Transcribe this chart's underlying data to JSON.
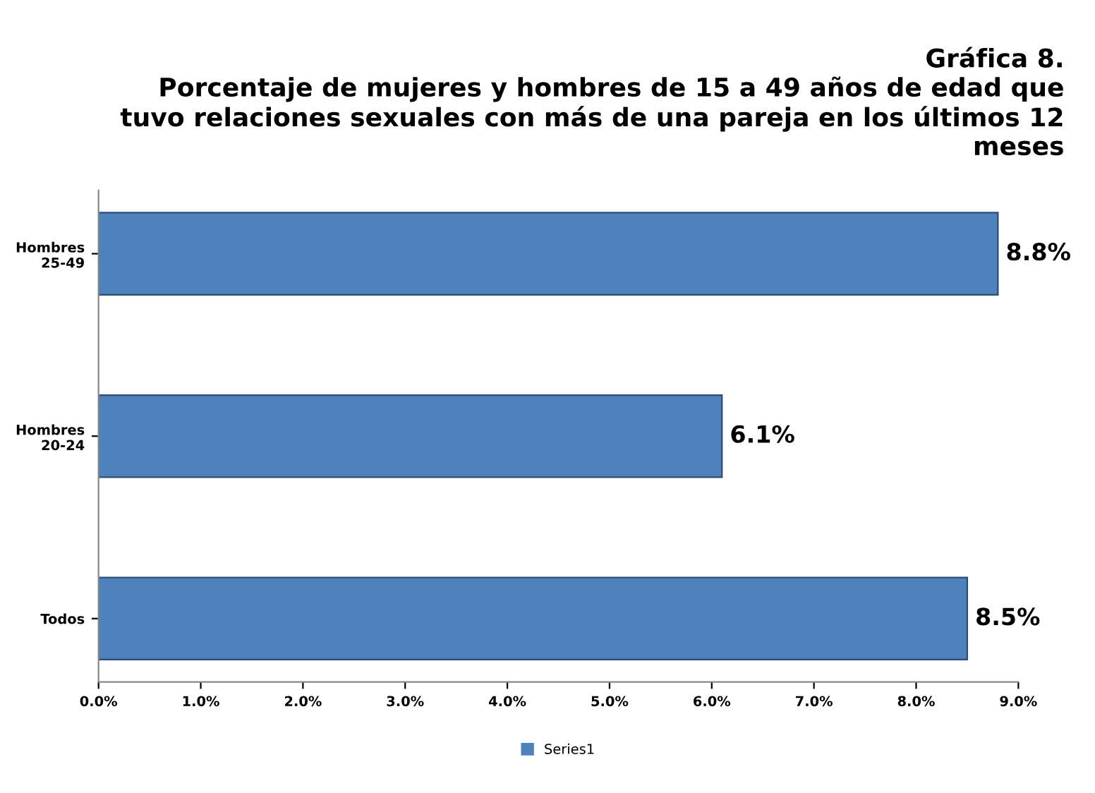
{
  "chart_data": {
    "type": "bar",
    "orientation": "horizontal",
    "title": "Gráfica 8.\nPorcentaje de mujeres y hombres de 15 a 49 años de edad que\ntuvo relaciones sexuales con más de una pareja en los últimos 12\nmeses",
    "categories": [
      "Hombres\n25-49",
      "Hombres\n20-24",
      "Todos"
    ],
    "series": [
      {
        "name": "Series1",
        "color": "#4f81bd",
        "values": [
          8.8,
          6.1,
          8.5
        ]
      }
    ],
    "value_labels": [
      "8.8%",
      "6.1%",
      "8.5%"
    ],
    "xlim": [
      0,
      9
    ],
    "xticks": [
      {
        "value": 0,
        "label": "0.0%"
      },
      {
        "value": 1,
        "label": "1.0%"
      },
      {
        "value": 2,
        "label": "2.0%"
      },
      {
        "value": 3,
        "label": "3.0%"
      },
      {
        "value": 4,
        "label": "4.0%"
      },
      {
        "value": 5,
        "label": "5.0%"
      },
      {
        "value": 6,
        "label": "6.0%"
      },
      {
        "value": 7,
        "label": "7.0%"
      },
      {
        "value": 8,
        "label": "8.0%"
      },
      {
        "value": 9,
        "label": "9.0%"
      }
    ],
    "legend": "bottom",
    "grid": false
  }
}
